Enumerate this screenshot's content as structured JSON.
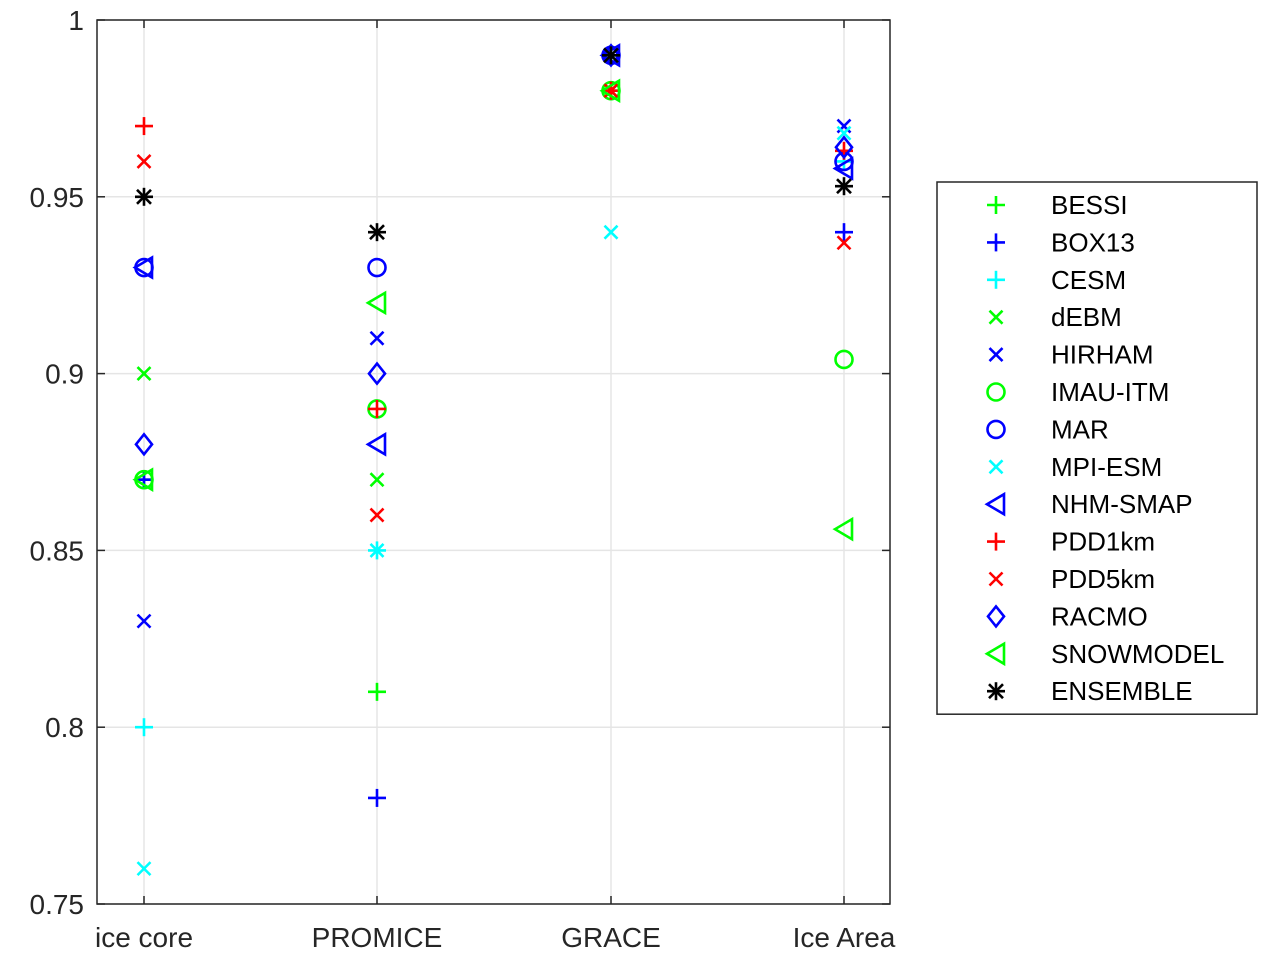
{
  "chart_data": {
    "type": "scatter",
    "title": "",
    "xlabel": "",
    "ylabel": "",
    "categories": [
      "ice core",
      "PROMICE",
      "GRACE",
      "Ice Area"
    ],
    "ylim": [
      0.75,
      1
    ],
    "yticks": [
      "0.75",
      "0.8",
      "0.85",
      "0.9",
      "0.95",
      "1"
    ],
    "grid": true,
    "legend_position": "outside-right",
    "series": [
      {
        "name": "BESSI",
        "marker": "plus",
        "color": "#00ff00",
        "values": [
          0.87,
          0.81,
          0.98,
          null
        ]
      },
      {
        "name": "BOX13",
        "marker": "plus",
        "color": "#0000ff",
        "values": [
          0.87,
          0.78,
          0.99,
          0.94
        ]
      },
      {
        "name": "CESM",
        "marker": "plus",
        "color": "#00ffff",
        "values": [
          0.8,
          0.85,
          0.99,
          0.96
        ]
      },
      {
        "name": "dEBM",
        "marker": "x",
        "color": "#00ff00",
        "values": [
          0.9,
          0.87,
          0.98,
          null
        ]
      },
      {
        "name": "HIRHAM",
        "marker": "x",
        "color": "#0000ff",
        "values": [
          0.83,
          0.91,
          0.99,
          0.97
        ]
      },
      {
        "name": "IMAU-ITM",
        "marker": "circle",
        "color": "#00ff00",
        "values": [
          0.87,
          0.89,
          0.98,
          0.904
        ]
      },
      {
        "name": "MAR",
        "marker": "circle",
        "color": "#0000ff",
        "values": [
          0.93,
          0.93,
          0.99,
          0.96
        ]
      },
      {
        "name": "MPI-ESM",
        "marker": "x",
        "color": "#00ffff",
        "values": [
          0.76,
          0.85,
          0.94,
          0.968
        ]
      },
      {
        "name": "NHM-SMAP",
        "marker": "triangle-left",
        "color": "#0000ff",
        "values": [
          0.93,
          0.88,
          0.99,
          0.958
        ]
      },
      {
        "name": "PDD1km",
        "marker": "plus",
        "color": "#ff0000",
        "values": [
          0.97,
          0.89,
          0.98,
          0.963
        ]
      },
      {
        "name": "PDD5km",
        "marker": "x",
        "color": "#ff0000",
        "values": [
          0.96,
          0.86,
          0.98,
          0.937
        ]
      },
      {
        "name": "RACMO",
        "marker": "diamond",
        "color": "#0000ff",
        "values": [
          0.88,
          0.9,
          0.99,
          0.964
        ]
      },
      {
        "name": "SNOWMODEL",
        "marker": "triangle-left",
        "color": "#00ff00",
        "values": [
          0.87,
          0.92,
          0.98,
          0.856
        ]
      },
      {
        "name": "ENSEMBLE",
        "marker": "asterisk",
        "color": "#000000",
        "values": [
          0.95,
          0.94,
          0.99,
          0.953
        ]
      }
    ]
  }
}
